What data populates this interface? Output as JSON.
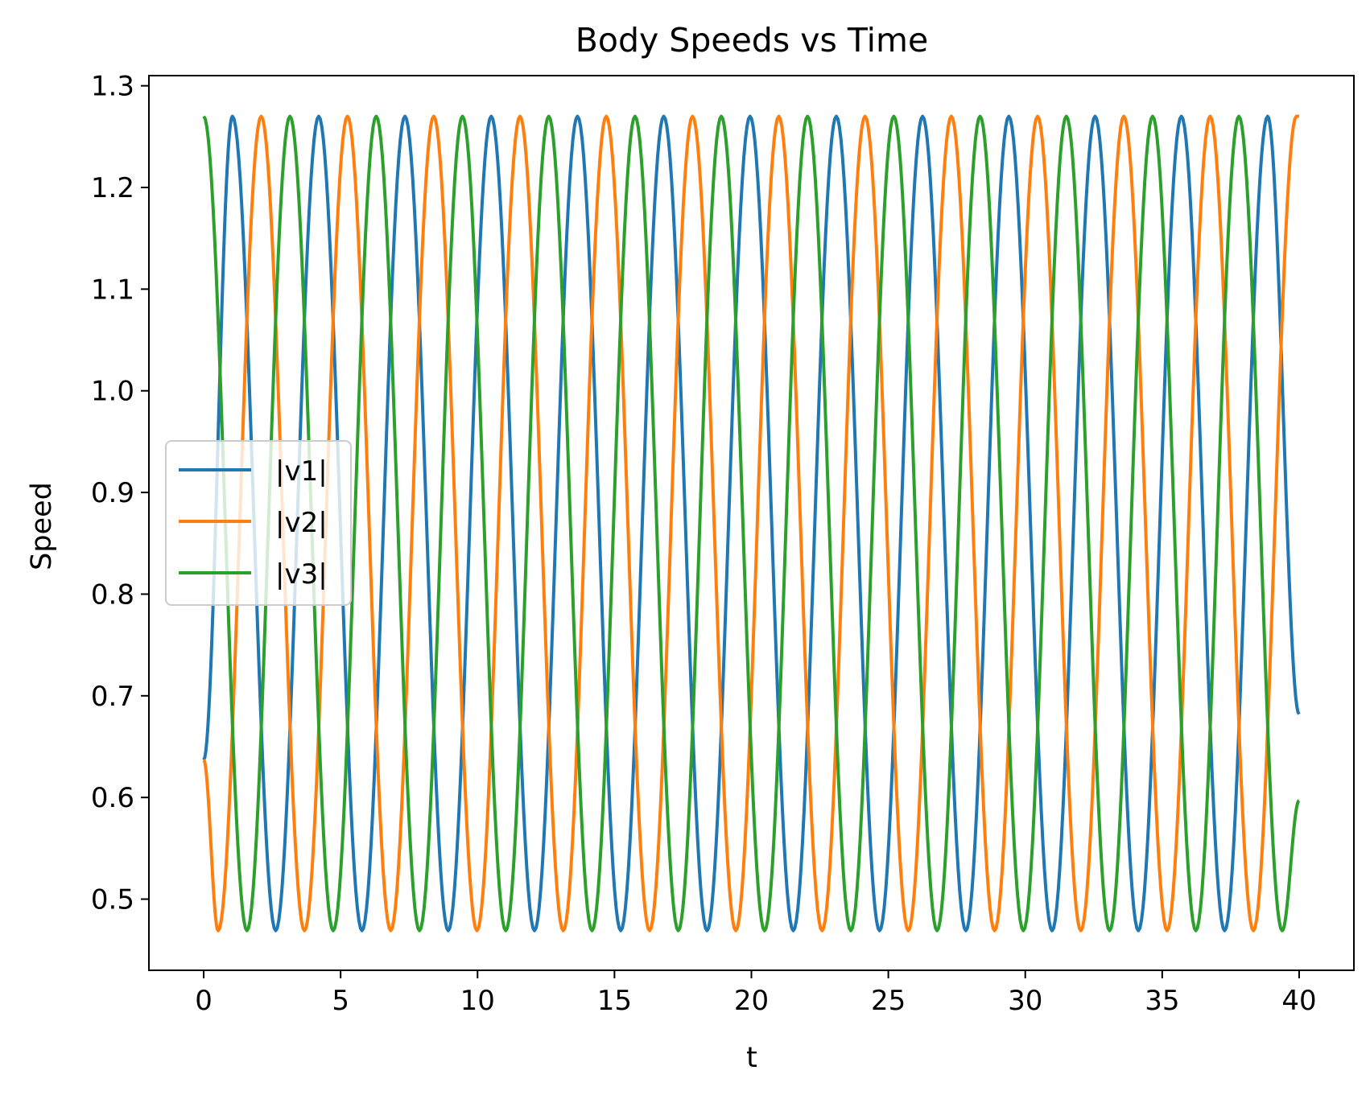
{
  "chart_data": {
    "type": "line",
    "title": "Body Speeds vs Time",
    "xlabel": "t",
    "ylabel": "Speed",
    "xlim": [
      -2,
      42
    ],
    "ylim": [
      0.43,
      1.31
    ],
    "x_ticks": [
      0,
      5,
      10,
      15,
      20,
      25,
      30,
      35,
      40
    ],
    "x_tick_labels": [
      "0",
      "5",
      "10",
      "15",
      "20",
      "25",
      "30",
      "35",
      "40"
    ],
    "y_ticks": [
      0.5,
      0.6,
      0.7,
      0.8,
      0.9,
      1.0,
      1.1,
      1.2,
      1.3
    ],
    "y_tick_labels": [
      "0.5",
      "0.6",
      "0.7",
      "0.8",
      "0.9",
      "1.0",
      "1.1",
      "1.2",
      "1.3"
    ],
    "grid": false,
    "legend_position": "center-left",
    "series": [
      {
        "name": "|v1|",
        "color": "#1f77b4",
        "x": [
          0,
          1.05,
          2.63,
          4.2,
          5.78,
          7.35,
          8.93,
          10.5,
          12.08,
          13.65,
          15.23,
          16.8,
          18.38,
          19.95,
          21.53,
          23.1,
          24.68,
          26.25,
          27.83,
          29.4,
          30.98,
          32.55,
          34.13,
          35.7,
          37.28,
          38.85,
          40
        ],
        "values": [
          0.637,
          1.27,
          0.469,
          1.27,
          0.469,
          1.27,
          0.469,
          1.27,
          0.469,
          1.27,
          0.469,
          1.27,
          0.469,
          1.27,
          0.469,
          1.27,
          0.469,
          1.27,
          0.469,
          1.27,
          0.469,
          1.27,
          0.469,
          1.27,
          0.469,
          1.27,
          0.682
        ]
      },
      {
        "name": "|v2|",
        "color": "#ff7f0e",
        "x": [
          0,
          0.53,
          2.1,
          3.68,
          5.25,
          6.83,
          8.4,
          9.98,
          11.55,
          13.13,
          14.7,
          16.28,
          17.85,
          19.43,
          21.0,
          22.58,
          24.15,
          25.73,
          27.3,
          28.88,
          30.45,
          32.03,
          33.6,
          35.18,
          36.75,
          38.33,
          39.9,
          40
        ],
        "values": [
          0.637,
          0.469,
          1.27,
          0.469,
          1.27,
          0.469,
          1.27,
          0.469,
          1.27,
          0.469,
          1.27,
          0.469,
          1.27,
          0.469,
          1.27,
          0.469,
          1.27,
          0.469,
          1.27,
          0.469,
          1.27,
          0.469,
          1.27,
          0.469,
          1.27,
          0.469,
          1.27,
          1.27
        ]
      },
      {
        "name": "|v3|",
        "color": "#2ca02c",
        "x": [
          0,
          1.58,
          3.15,
          4.73,
          6.3,
          7.88,
          9.45,
          11.03,
          12.6,
          14.18,
          15.75,
          17.33,
          18.9,
          20.48,
          22.05,
          23.63,
          25.2,
          26.78,
          28.35,
          29.93,
          31.5,
          33.08,
          34.65,
          36.23,
          37.8,
          39.38,
          40
        ],
        "values": [
          1.27,
          0.469,
          1.27,
          0.469,
          1.27,
          0.469,
          1.27,
          0.469,
          1.27,
          0.469,
          1.27,
          0.469,
          1.27,
          0.469,
          1.27,
          0.469,
          1.27,
          0.469,
          1.27,
          0.469,
          1.27,
          0.469,
          1.27,
          0.469,
          1.27,
          0.469,
          0.597
        ]
      }
    ]
  }
}
